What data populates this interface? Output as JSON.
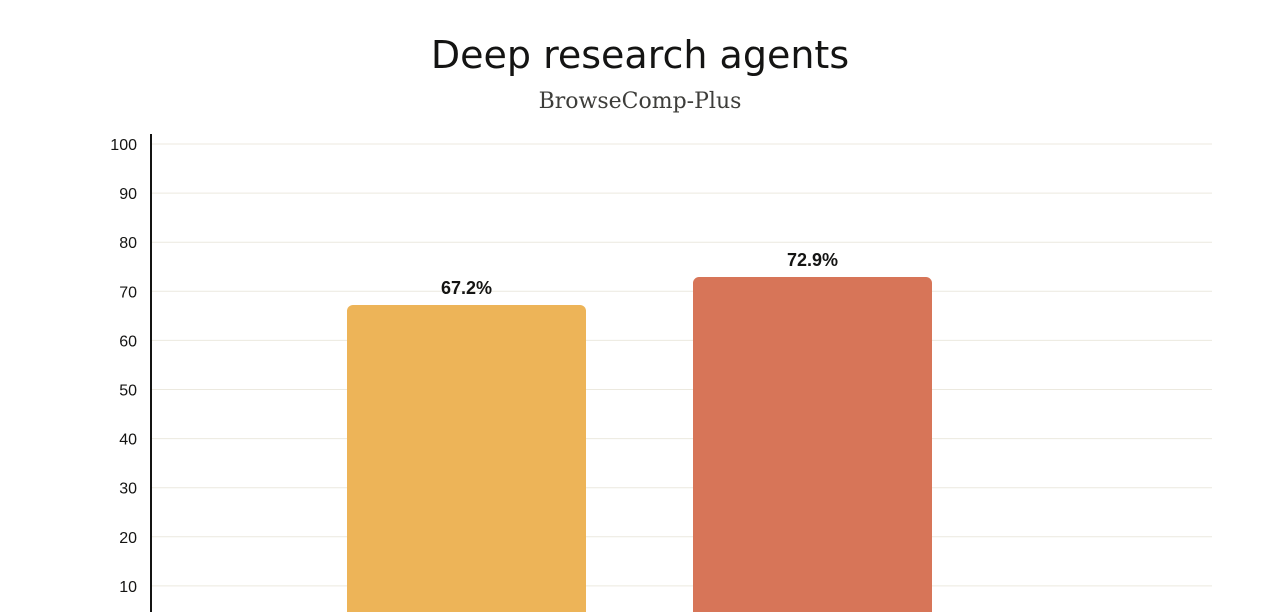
{
  "chart_data": {
    "type": "bar",
    "title": "Deep research agents",
    "subtitle": "BrowseComp-Plus",
    "xlabel": "",
    "ylabel": "",
    "ylim": [
      0,
      100
    ],
    "yticks": [
      10,
      20,
      30,
      40,
      50,
      60,
      70,
      80,
      90,
      100
    ],
    "grid": true,
    "categories": [
      "",
      ""
    ],
    "values": [
      67.2,
      72.9
    ],
    "value_labels": [
      "67.2%",
      "72.9%"
    ],
    "colors": [
      "#edb458",
      "#d77558"
    ]
  }
}
